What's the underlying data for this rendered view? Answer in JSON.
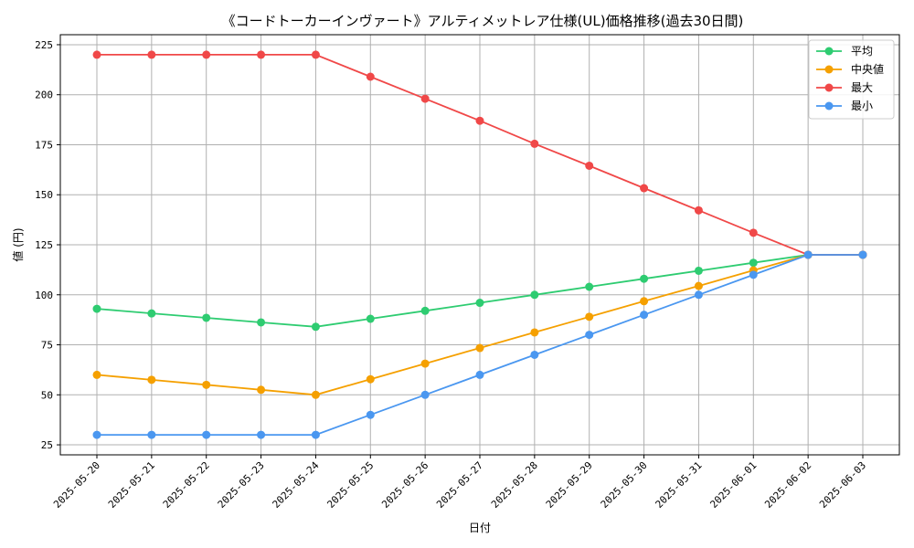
{
  "chart_data": {
    "type": "line",
    "title": "《コードトーカーインヴァート》アルティメットレア仕様(UL)価格推移(過去30日間)",
    "xlabel": "日付",
    "ylabel": "値 (円)",
    "ylim": [
      20,
      230
    ],
    "yticks": [
      25,
      50,
      75,
      100,
      125,
      150,
      175,
      200,
      225
    ],
    "grid": true,
    "legend_position": "top-right",
    "categories": [
      "2025-05-20",
      "2025-05-21",
      "2025-05-22",
      "2025-05-23",
      "2025-05-24",
      "2025-05-25",
      "2025-05-26",
      "2025-05-27",
      "2025-05-28",
      "2025-05-29",
      "2025-05-30",
      "2025-05-31",
      "2025-06-01",
      "2025-06-02",
      "2025-06-03"
    ],
    "series": [
      {
        "name": "平均",
        "color": "#2ecc71",
        "values": [
          93,
          90.7,
          88.5,
          86.2,
          84,
          88,
          92,
          96,
          100,
          104,
          108,
          112,
          116,
          120,
          120
        ]
      },
      {
        "name": "中央値",
        "color": "#f5a000",
        "values": [
          60,
          57.5,
          55,
          52.5,
          50,
          57.8,
          65.6,
          73.4,
          81.2,
          89,
          96.8,
          104.4,
          112.2,
          120,
          120
        ]
      },
      {
        "name": "最大",
        "color": "#f04848",
        "values": [
          220,
          220,
          220,
          220,
          220,
          209,
          198,
          187,
          175.5,
          164.5,
          153.3,
          142.2,
          131,
          120,
          120
        ]
      },
      {
        "name": "最小",
        "color": "#4a97f0",
        "values": [
          30,
          30,
          30,
          30,
          30,
          40,
          50,
          60,
          70,
          80,
          90,
          100,
          110,
          120,
          120
        ]
      }
    ]
  }
}
